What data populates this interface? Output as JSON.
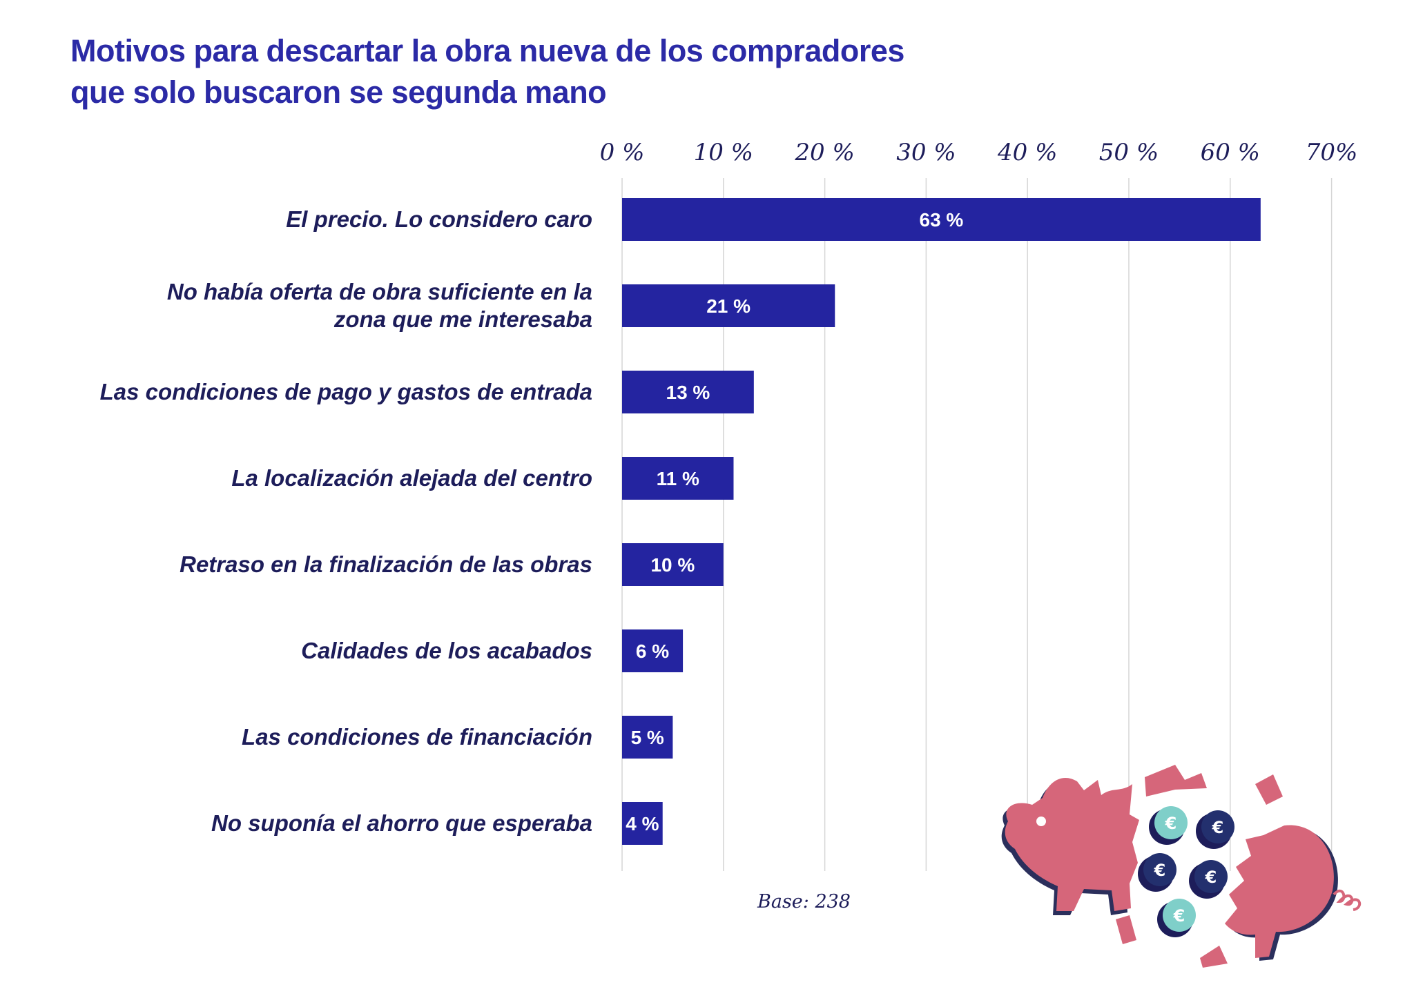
{
  "title_line1": "Motivos para descartar la obra nueva de los compradores",
  "title_line2": "que solo buscaron se segunda mano",
  "base_note": "Base: 238",
  "colors": {
    "bar": "#2424a0",
    "title": "#2b2aa6",
    "text": "#1d1d5a",
    "grid": "#d6d6d6",
    "pig": "#d6667a",
    "coin_dark": "#23306e",
    "coin_teal": "#7fcfc9"
  },
  "chart_data": {
    "type": "bar",
    "orientation": "horizontal",
    "title": "Motivos para descartar la obra nueva de los compradores que solo buscaron se segunda mano",
    "categories": [
      [
        "El precio. Lo considero caro"
      ],
      [
        "No había oferta de obra suficiente en la",
        "zona que me interesaba"
      ],
      [
        "Las condiciones de pago y gastos de entrada"
      ],
      [
        "La localización alejada del centro"
      ],
      [
        "Retraso en la finalización de las obras"
      ],
      [
        "Calidades de los acabados"
      ],
      [
        "Las condiciones de financiación"
      ],
      [
        "No suponía el ahorro que esperaba"
      ]
    ],
    "values": [
      63,
      21,
      13,
      11,
      10,
      6,
      5,
      4
    ],
    "value_labels": [
      "63 %",
      "21 %",
      "13 %",
      "11 %",
      "10 %",
      "6 %",
      "5 %",
      "4 %"
    ],
    "xlim": [
      0,
      70
    ],
    "xticks": [
      0,
      10,
      20,
      30,
      40,
      50,
      60,
      70
    ],
    "xtick_labels": [
      "0 %",
      "10 %",
      "20 %",
      "30 %",
      "40 %",
      "50 %",
      "60 %",
      "70%"
    ],
    "axis_position": "top",
    "grid": true,
    "legend": "none"
  }
}
